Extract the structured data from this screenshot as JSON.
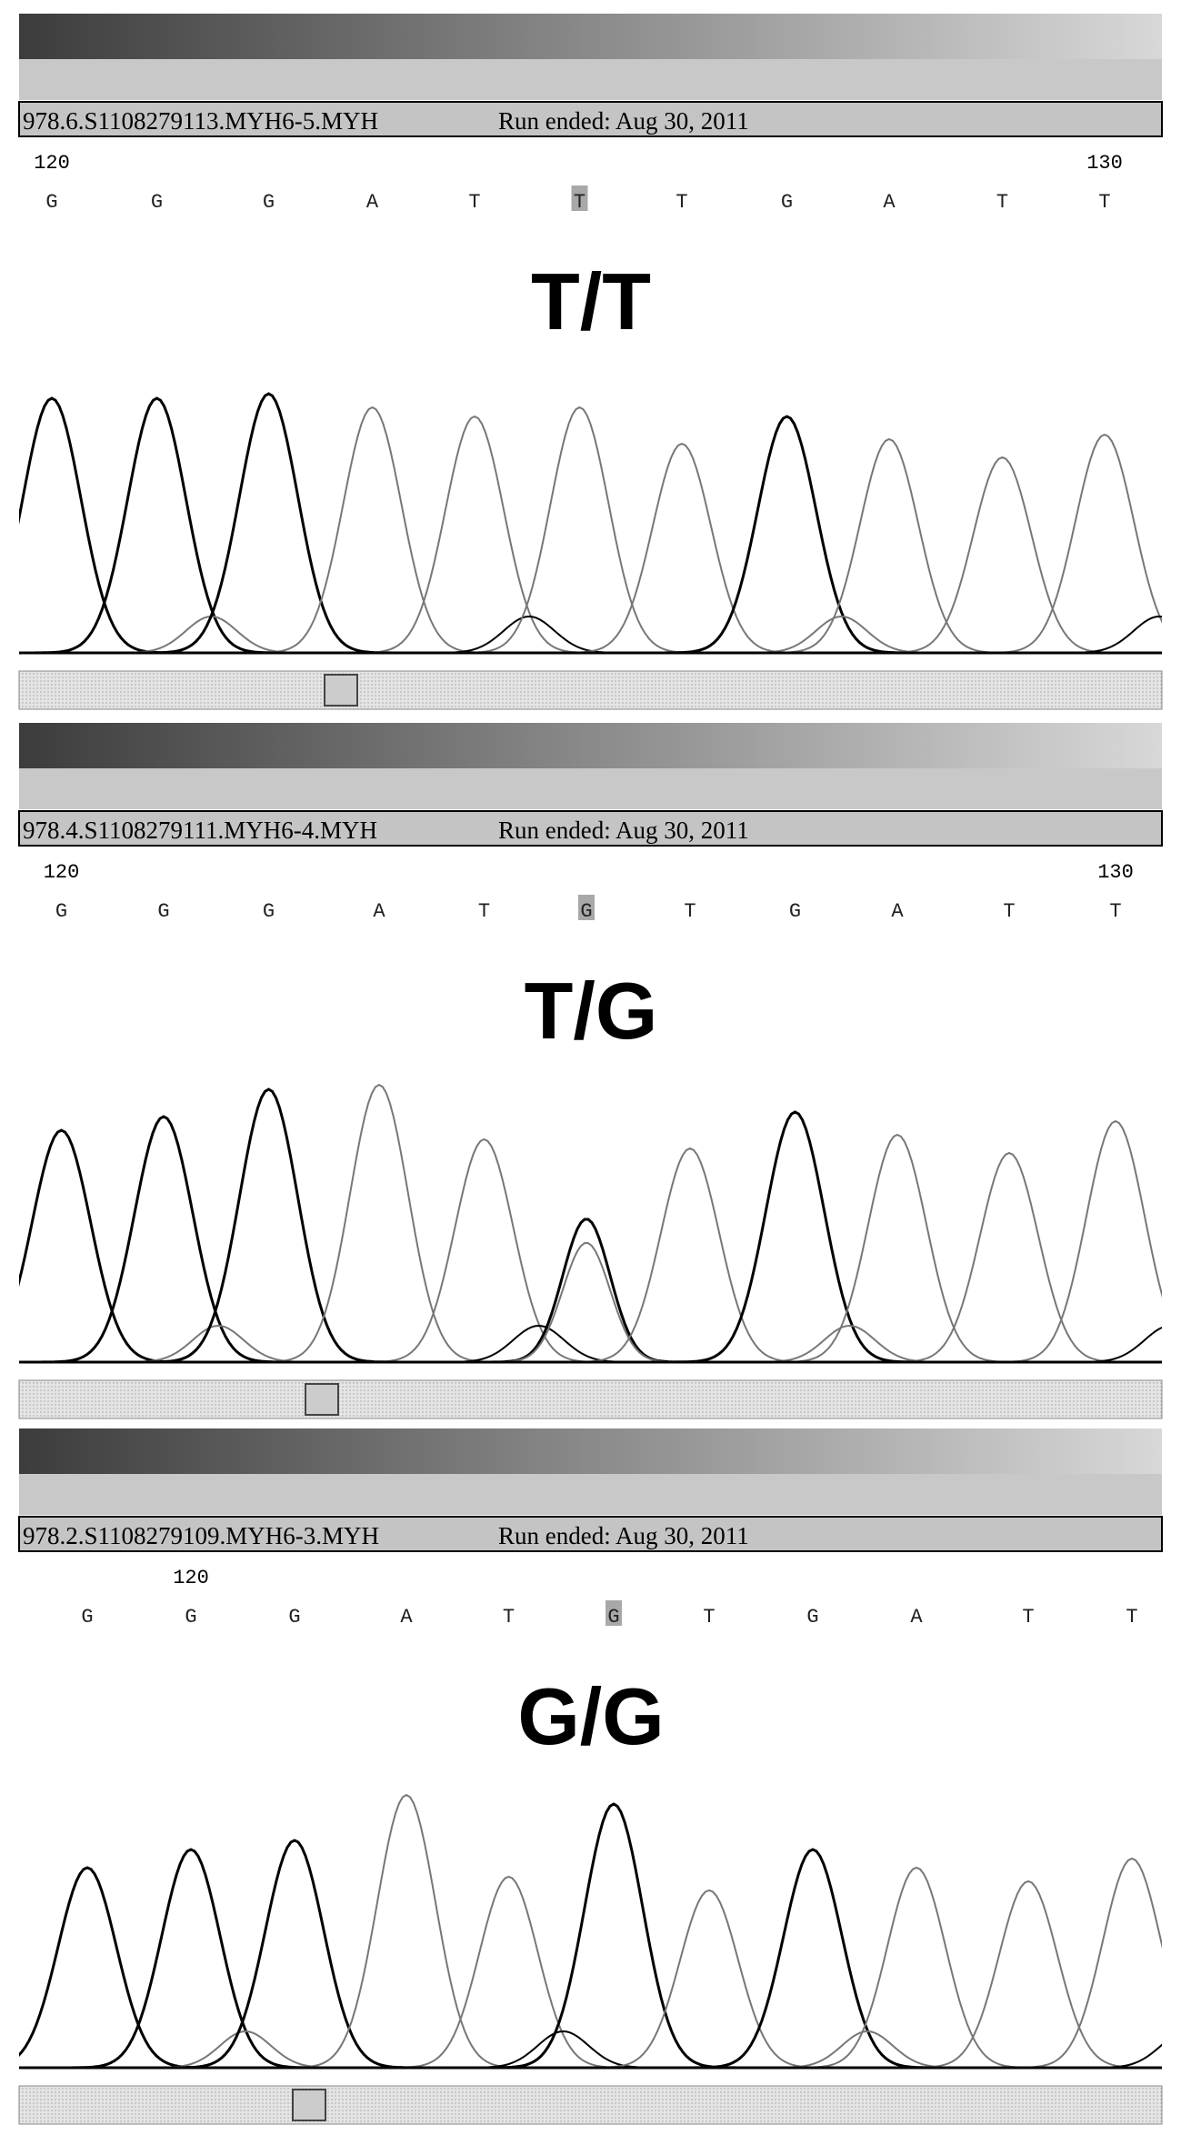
{
  "panels": [
    {
      "file_name": "978.6.S1108279113.MYH6-5.MYH",
      "run_info": "Run ended: Aug 30, 2011",
      "position_labels": [
        "120",
        "130"
      ],
      "bases": [
        "G",
        "G",
        "G",
        "A",
        "T",
        "T",
        "T",
        "G",
        "A",
        "T",
        "T"
      ],
      "highlighted_base": 5,
      "genotype": "T/T"
    },
    {
      "file_name": "978.4.S1108279111.MYH6-4.MYH",
      "run_info": "Run ended: Aug 30, 2011",
      "position_labels": [
        "120",
        "130"
      ],
      "bases": [
        "G",
        "G",
        "G",
        "A",
        "T",
        "G",
        "T",
        "G",
        "A",
        "T",
        "T"
      ],
      "highlighted_base": 5,
      "genotype": "T/G"
    },
    {
      "file_name": "978.2.S1108279109.MYH6-3.MYH",
      "run_info": "Run ended: Aug 30, 2011",
      "position_labels": [
        "120"
      ],
      "bases": [
        "G",
        "G",
        "G",
        "A",
        "T",
        "G",
        "T",
        "G",
        "A",
        "T",
        "T"
      ],
      "highlighted_base": 5,
      "genotype": "G/G"
    }
  ]
}
